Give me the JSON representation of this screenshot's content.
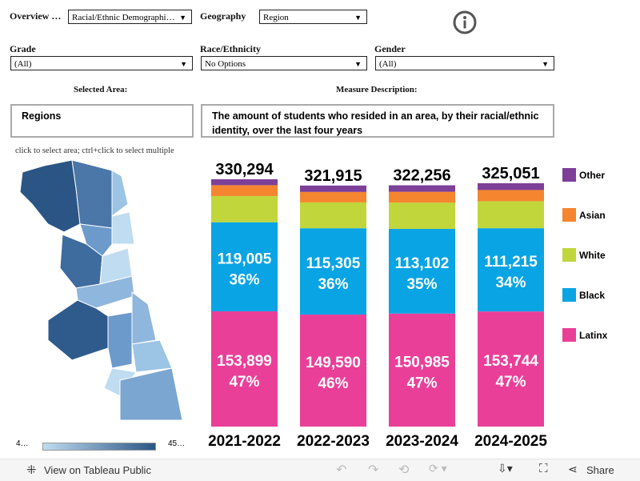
{
  "filters": {
    "overview_label": "Overview …",
    "overview_value": "Racial/Ethnic Demographi…",
    "geography_label": "Geography",
    "geography_value": "Region",
    "grade_label": "Grade",
    "grade_value": "(All)",
    "race_label": "Race/Ethnicity",
    "race_value": "No Options",
    "gender_label": "Gender",
    "gender_value": "(All)"
  },
  "info_icon": "info-circle-icon",
  "selected_area": {
    "label": "Selected Area:",
    "value": "Regions"
  },
  "measure": {
    "label": "Measure Description:",
    "value": "The amount of students who resided in an area, by their racial/ethnic identity, over the last four years"
  },
  "map": {
    "hint": "click to select area; ctrl+click to select multiple",
    "legend_min": "4…",
    "legend_max": "45…",
    "color_low": "#bfdcf0",
    "color_high": "#2b5584"
  },
  "chart_data": {
    "type": "bar",
    "stacked": true,
    "categories": [
      "2021-2022",
      "2022-2023",
      "2023-2024",
      "2024-2025"
    ],
    "totals": [
      "330,294",
      "321,915",
      "322,256",
      "325,051"
    ],
    "series": [
      {
        "name": "Latinx",
        "color": "#ea3f98",
        "values": [
          153899,
          149590,
          150985,
          153744
        ],
        "labels": [
          "153,899",
          "149,590",
          "150,985",
          "153,744"
        ],
        "pct": [
          "47%",
          "46%",
          "47%",
          "47%"
        ]
      },
      {
        "name": "Black",
        "color": "#09a4e4",
        "values": [
          119005,
          115305,
          113102,
          111215
        ],
        "labels": [
          "119,005",
          "115,305",
          "113,102",
          "111,215"
        ],
        "pct": [
          "36%",
          "36%",
          "35%",
          "34%"
        ]
      },
      {
        "name": "White",
        "color": "#c0d63b",
        "values": [
          35000,
          34500,
          35000,
          36000
        ]
      },
      {
        "name": "Asian",
        "color": "#f5852f",
        "values": [
          14500,
          14000,
          14500,
          15000
        ]
      },
      {
        "name": "Other",
        "color": "#7d3f98",
        "values": [
          7890,
          8520,
          8669,
          9092
        ]
      }
    ]
  },
  "toolbar": {
    "view_label": "View on Tableau Public",
    "share_label": "Share"
  }
}
